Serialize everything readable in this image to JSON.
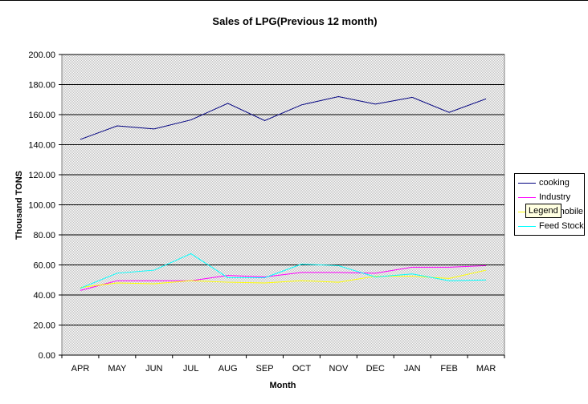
{
  "chart_data": {
    "type": "line",
    "title": "Sales of LPG(Previous 12 month)",
    "xlabel": "Month",
    "ylabel": "Thousand TONS",
    "categories": [
      "APR",
      "MAY",
      "JUN",
      "JUL",
      "AUG",
      "SEP",
      "OCT",
      "NOV",
      "DEC",
      "JAN",
      "FEB",
      "MAR"
    ],
    "ylim": [
      0,
      200
    ],
    "yticks": [
      "0.00",
      "20.00",
      "40.00",
      "60.00",
      "80.00",
      "100.00",
      "120.00",
      "140.00",
      "160.00",
      "180.00",
      "200.00"
    ],
    "grid": true,
    "legend_position": "right",
    "series": [
      {
        "name": "cooking",
        "color": "#000080",
        "values": [
          143.5,
          152.5,
          150.5,
          156.5,
          167.5,
          156,
          166.5,
          172,
          167,
          171.5,
          161.5,
          170.5
        ]
      },
      {
        "name": "Industry",
        "color": "#ff00ff",
        "values": [
          43,
          49.5,
          49.5,
          49.5,
          53,
          52,
          55,
          55,
          54.5,
          58.5,
          58.5,
          59.5
        ]
      },
      {
        "name": "Automobile",
        "color": "#ffff00",
        "values": [
          45,
          48,
          47.5,
          49.5,
          48.5,
          48,
          49.5,
          48.5,
          52.5,
          52.5,
          51,
          56.5
        ]
      },
      {
        "name": "Feed Stock",
        "color": "#00ffff",
        "values": [
          44.5,
          54.5,
          56.5,
          67.5,
          51.5,
          51.5,
          60.5,
          59.5,
          52,
          54,
          49.5,
          50
        ]
      }
    ]
  },
  "tooltip": {
    "text": "Legend"
  },
  "colors": {
    "plot_background": "#c0c0c0",
    "gridline": "#000000"
  }
}
